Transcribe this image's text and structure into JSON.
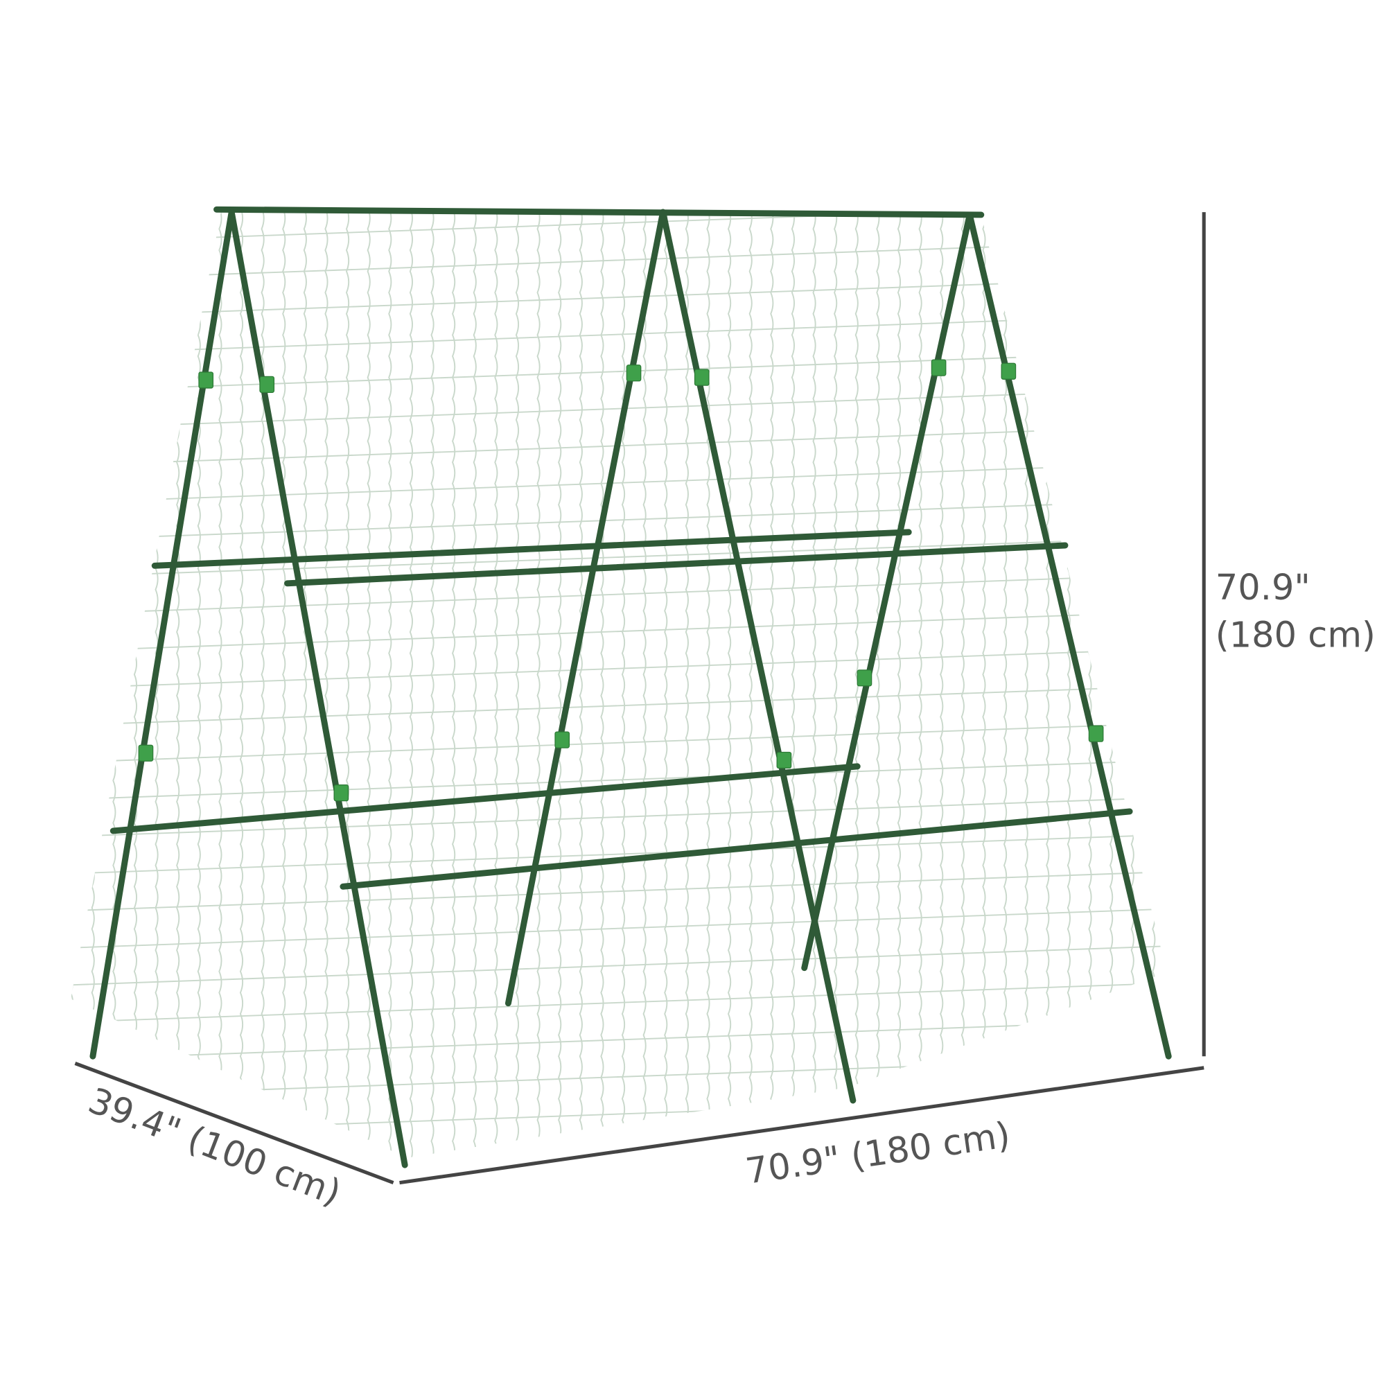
{
  "dimensions": {
    "height": {
      "line1": "70.9\"",
      "line2": "(180 cm)"
    },
    "width": "70.9\" (180 cm)",
    "depth": "39.4\" (100 cm)"
  },
  "colors": {
    "frame": "#2f5a37",
    "clip": "#3fa04a",
    "netting": "#c9d8cb",
    "dimension_line": "#444444",
    "text": "#555555"
  }
}
